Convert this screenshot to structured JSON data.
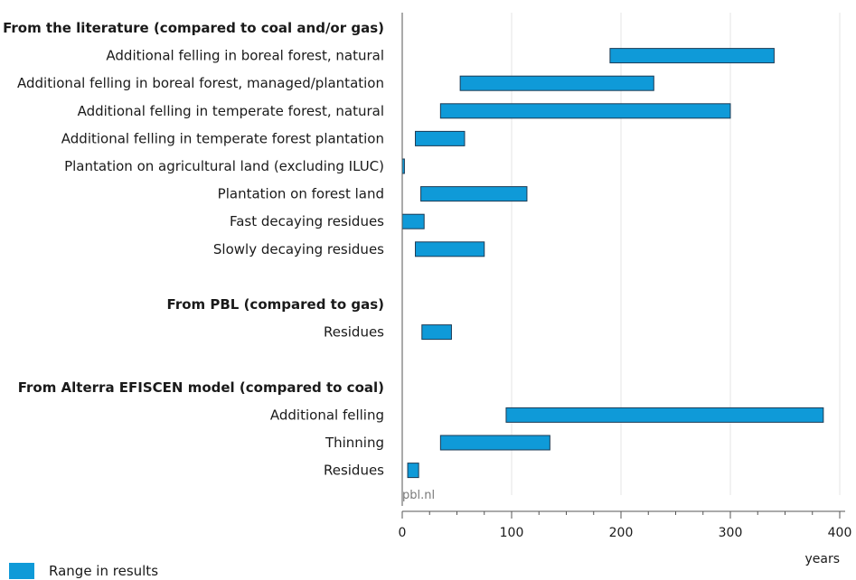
{
  "chart_data": {
    "type": "bar",
    "orientation": "horizontal-range",
    "xlabel": "years",
    "xlim": [
      0,
      400
    ],
    "xticks": [
      0,
      100,
      200,
      300,
      400
    ],
    "grid": true,
    "bar_color": "#0f9ad8",
    "watermark": "pbl.nl",
    "legend": {
      "placement": "bottom-left",
      "label": "Range in results"
    },
    "rows": [
      {
        "label": "From the literature (compared to coal and/or gas)",
        "header": true
      },
      {
        "label": "Additional felling in boreal forest, natural",
        "start": 190,
        "end": 340
      },
      {
        "label": "Additional felling in boreal forest, managed/plantation",
        "start": 53,
        "end": 230
      },
      {
        "label": "Additional felling in temperate forest, natural",
        "start": 35,
        "end": 300
      },
      {
        "label": "Additional felling in temperate forest plantation",
        "start": 12,
        "end": 57
      },
      {
        "label": "Plantation on agricultural land (excluding ILUC)",
        "start": 0,
        "end": 2
      },
      {
        "label": "Plantation on forest land",
        "start": 17,
        "end": 114
      },
      {
        "label": "Fast decaying residues",
        "start": 0,
        "end": 20
      },
      {
        "label": "Slowly decaying residues",
        "start": 12,
        "end": 75
      },
      {
        "label": "",
        "spacer": true
      },
      {
        "label": "From PBL (compared to gas)",
        "header": true
      },
      {
        "label": "Residues",
        "start": 18,
        "end": 45
      },
      {
        "label": "",
        "spacer": true
      },
      {
        "label": "From Alterra EFISCEN model (compared to coal)",
        "header": true
      },
      {
        "label": "Additional felling",
        "start": 95,
        "end": 385
      },
      {
        "label": "Thinning",
        "start": 35,
        "end": 135
      },
      {
        "label": "Residues",
        "start": 5,
        "end": 15
      }
    ]
  }
}
